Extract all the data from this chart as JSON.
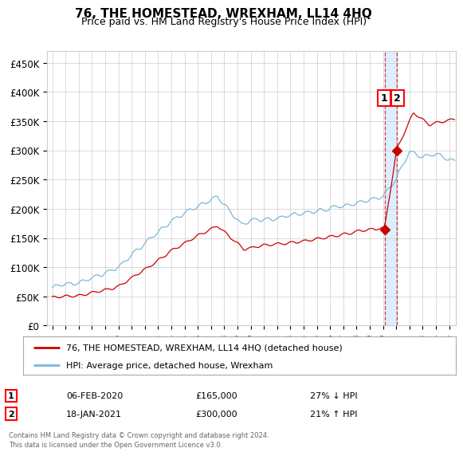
{
  "title": "76, THE HOMESTEAD, WREXHAM, LL14 4HQ",
  "subtitle": "Price paid vs. HM Land Registry's House Price Index (HPI)",
  "footer": "Contains HM Land Registry data © Crown copyright and database right 2024.\nThis data is licensed under the Open Government Licence v3.0.",
  "legend_line1": "76, THE HOMESTEAD, WREXHAM, LL14 4HQ (detached house)",
  "legend_line2": "HPI: Average price, detached house, Wrexham",
  "transaction1_date": "06-FEB-2020",
  "transaction1_price": "£165,000",
  "transaction1_hpi": "27% ↓ HPI",
  "transaction1_year": 2020.12,
  "transaction1_value": 165000,
  "transaction2_date": "18-JAN-2021",
  "transaction2_price": "£300,000",
  "transaction2_hpi": "21% ↑ HPI",
  "transaction2_year": 2021.05,
  "transaction2_value": 300000,
  "hpi_color": "#7ab8d9",
  "price_color": "#cc0000",
  "highlight_color": "#ddeeff",
  "grid_color": "#cccccc",
  "background_color": "#ffffff",
  "ylim": [
    0,
    470000
  ],
  "yticks": [
    0,
    50000,
    100000,
    150000,
    200000,
    250000,
    300000,
    350000,
    400000,
    450000
  ],
  "ytick_labels": [
    "£0",
    "£50K",
    "£100K",
    "£150K",
    "£200K",
    "£250K",
    "£300K",
    "£350K",
    "£400K",
    "£450K"
  ],
  "xlim_start": 1994.6,
  "xlim_end": 2025.5
}
